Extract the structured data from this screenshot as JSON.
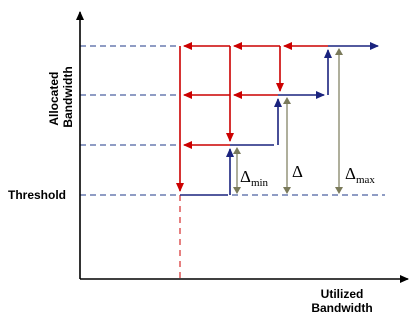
{
  "labels": {
    "y_axis_line1": "Allocated",
    "y_axis_line2": "Bandwidth",
    "x_axis_line1": "Utilized",
    "x_axis_line2": "Bandwidth",
    "threshold": "Threshold",
    "delta_min_symbol": "Δ",
    "delta_min_sub": "min",
    "delta_symbol": "Δ",
    "delta_max_symbol": "Δ",
    "delta_max_sub": "max"
  },
  "colors": {
    "axis": "#000000",
    "dashed_guides": "#1f3a8a",
    "increase_path": "#1a237e",
    "decrease_path": "#cc0000",
    "delta_arrows": "#7a7a5a",
    "red_dash": "#cc0000"
  }
}
